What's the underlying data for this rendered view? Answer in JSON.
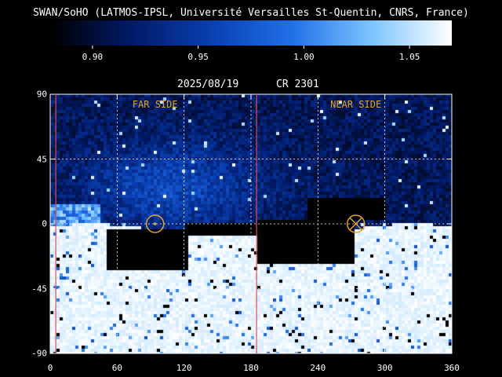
{
  "header": {
    "title": "SWAN/SoHO (LATMOS-IPSL, Université Versailles St-Quentin, CNRS, France)",
    "date": "2025/08/19",
    "carrington": "CR 2301"
  },
  "colorbar": {
    "min": 0.88,
    "max": 1.07,
    "ticks": [
      "0.90",
      "0.95",
      "1.00",
      "1.05"
    ],
    "colors": [
      "#000000",
      "#001a66",
      "#0a3fb0",
      "#1f6fe8",
      "#7cc4ff",
      "#ffffff"
    ]
  },
  "chart_data": {
    "type": "heatmap",
    "title": "SWAN/SoHO (LATMOS-IPSL, Université Versailles St-Quentin, CNRS, France)",
    "xlim": [
      0,
      360
    ],
    "ylim": [
      -90,
      90
    ],
    "x_ticks": [
      "0",
      "60",
      "120",
      "180",
      "240",
      "300",
      "360"
    ],
    "y_ticks": [
      "90",
      "45",
      "0",
      "-45",
      "-90"
    ],
    "grid": true,
    "side_labels": [
      {
        "text": "FAR SIDE",
        "lon": 94
      },
      {
        "text": "NEAR SIDE",
        "lon": 274
      }
    ],
    "markers": [
      {
        "type": "circle-dot",
        "lon": 94,
        "lat": 0
      },
      {
        "type": "circle-cross",
        "lon": 274,
        "lat": 0
      }
    ],
    "vertical_lines": [
      5,
      185
    ],
    "marker_color": "#e8a21e",
    "line_color": "#e0504a"
  }
}
